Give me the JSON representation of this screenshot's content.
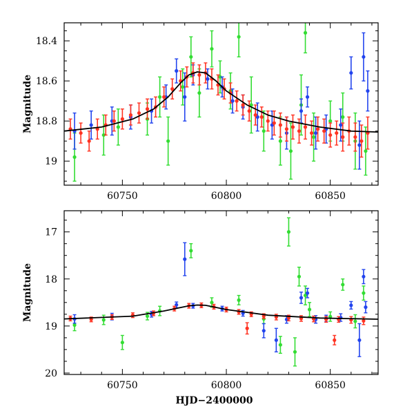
{
  "chart_data": [
    {
      "type": "scatter",
      "panel": "top",
      "xlabel": "",
      "ylabel": "Magnitude",
      "xlim": [
        60722,
        60873
      ],
      "ylim": [
        19.12,
        18.31
      ],
      "y_inverted": true,
      "x_ticks": [
        60750,
        60800,
        60850
      ],
      "x_tick_labels": [
        "60750",
        "60800",
        "60850"
      ],
      "y_ticks": [
        18.4,
        18.6,
        18.8,
        19.0
      ],
      "y_tick_labels": [
        "18.4",
        "18.6",
        "18.8",
        "19"
      ],
      "series_colors": {
        "green": "#33dd33",
        "blue": "#2244ee",
        "red": "#ff3322",
        "model": "#000000"
      },
      "model_curve": {
        "x": [
          60722,
          60740,
          60755,
          60765,
          60772,
          60778,
          60782,
          60786,
          60790,
          60795,
          60800,
          60810,
          60820,
          60830,
          60845,
          60860,
          60873
        ],
        "y": [
          18.85,
          18.83,
          18.79,
          18.74,
          18.68,
          18.61,
          18.57,
          18.555,
          18.56,
          18.6,
          18.65,
          18.72,
          18.77,
          18.8,
          18.83,
          18.85,
          18.855
        ]
      },
      "series": [
        {
          "color": "green",
          "points": [
            [
              60727,
              18.98,
              0.12
            ],
            [
              60741,
              18.87,
              0.1
            ],
            [
              60748,
              18.83,
              0.09
            ],
            [
              60762,
              18.79,
              0.08
            ],
            [
              60768,
              18.68,
              0.1
            ],
            [
              60772,
              18.9,
              0.12
            ],
            [
              60779,
              18.63,
              0.09
            ],
            [
              60783,
              18.48,
              0.1
            ],
            [
              60787,
              18.66,
              0.12
            ],
            [
              60793,
              18.44,
              0.09
            ],
            [
              60797,
              18.58,
              0.08
            ],
            [
              60802,
              18.65,
              0.09
            ],
            [
              60806,
              18.38,
              0.1
            ],
            [
              60812,
              18.72,
              0.14
            ],
            [
              60818,
              18.85,
              0.1
            ],
            [
              60826,
              18.9,
              0.12
            ],
            [
              60831,
              18.95,
              0.14
            ],
            [
              60836,
              18.72,
              0.15
            ],
            [
              60838,
              18.36,
              0.1
            ],
            [
              60842,
              18.88,
              0.12
            ],
            [
              60850,
              18.8,
              0.1
            ],
            [
              60856,
              18.78,
              0.12
            ],
            [
              60862,
              18.9,
              0.14
            ],
            [
              60867,
              18.95,
              0.12
            ]
          ]
        },
        {
          "color": "blue",
          "points": [
            [
              60727,
              18.85,
              0.09
            ],
            [
              60735,
              18.82,
              0.07
            ],
            [
              60745,
              18.8,
              0.07
            ],
            [
              60754,
              18.78,
              0.06
            ],
            [
              60764,
              18.75,
              0.06
            ],
            [
              60771,
              18.68,
              0.06
            ],
            [
              60776,
              18.55,
              0.06
            ],
            [
              60780,
              18.68,
              0.12
            ],
            [
              60784,
              18.57,
              0.05
            ],
            [
              60791,
              18.59,
              0.05
            ],
            [
              60798,
              18.63,
              0.05
            ],
            [
              60803,
              18.7,
              0.06
            ],
            [
              60808,
              18.73,
              0.06
            ],
            [
              60815,
              18.78,
              0.07
            ],
            [
              60822,
              18.82,
              0.07
            ],
            [
              60829,
              18.86,
              0.08
            ],
            [
              60836,
              18.75,
              0.06
            ],
            [
              60839,
              18.68,
              0.05
            ],
            [
              60843,
              18.86,
              0.08
            ],
            [
              60848,
              18.84,
              0.07
            ],
            [
              60855,
              18.82,
              0.08
            ],
            [
              60860,
              18.56,
              0.08
            ],
            [
              60864,
              18.92,
              0.12
            ],
            [
              60866,
              18.48,
              0.12
            ],
            [
              60868,
              18.65,
              0.1
            ]
          ]
        },
        {
          "color": "red",
          "points": [
            [
              60725,
              18.84,
              0.05
            ],
            [
              60730,
              18.86,
              0.05
            ],
            [
              60734,
              18.9,
              0.05
            ],
            [
              60738,
              18.84,
              0.05
            ],
            [
              60742,
              18.82,
              0.05
            ],
            [
              60746,
              18.8,
              0.05
            ],
            [
              60750,
              18.79,
              0.05
            ],
            [
              60754,
              18.77,
              0.05
            ],
            [
              60758,
              18.76,
              0.05
            ],
            [
              60762,
              18.74,
              0.05
            ],
            [
              60766,
              18.73,
              0.05
            ],
            [
              60770,
              18.68,
              0.05
            ],
            [
              60774,
              18.64,
              0.05
            ],
            [
              60778,
              18.6,
              0.05
            ],
            [
              60781,
              18.58,
              0.05
            ],
            [
              60784,
              18.56,
              0.05
            ],
            [
              60787,
              18.57,
              0.05
            ],
            [
              60790,
              18.56,
              0.05
            ],
            [
              60793,
              18.59,
              0.05
            ],
            [
              60796,
              18.62,
              0.05
            ],
            [
              60799,
              18.64,
              0.05
            ],
            [
              60802,
              18.66,
              0.05
            ],
            [
              60805,
              18.7,
              0.05
            ],
            [
              60808,
              18.72,
              0.05
            ],
            [
              60811,
              18.75,
              0.05
            ],
            [
              60814,
              18.77,
              0.05
            ],
            [
              60817,
              18.78,
              0.05
            ],
            [
              60820,
              18.8,
              0.05
            ],
            [
              60823,
              18.81,
              0.06
            ],
            [
              60826,
              18.82,
              0.06
            ],
            [
              60829,
              18.84,
              0.06
            ],
            [
              60832,
              18.83,
              0.06
            ],
            [
              60835,
              18.85,
              0.06
            ],
            [
              60838,
              18.83,
              0.06
            ],
            [
              60841,
              18.86,
              0.06
            ],
            [
              60844,
              18.84,
              0.06
            ],
            [
              60847,
              18.85,
              0.06
            ],
            [
              60850,
              18.87,
              0.06
            ],
            [
              60853,
              18.86,
              0.06
            ],
            [
              60856,
              18.88,
              0.07
            ],
            [
              60859,
              18.85,
              0.07
            ],
            [
              60862,
              18.88,
              0.07
            ],
            [
              60865,
              18.9,
              0.08
            ],
            [
              60868,
              18.86,
              0.08
            ]
          ]
        }
      ]
    },
    {
      "type": "scatter",
      "panel": "bottom",
      "xlabel": "HJD−2400000",
      "ylabel": "Magnitude",
      "xlim": [
        60722,
        60873
      ],
      "ylim": [
        20.03,
        16.55
      ],
      "y_inverted": true,
      "x_ticks": [
        60750,
        60800,
        60850
      ],
      "x_tick_labels": [
        "60750",
        "60800",
        "60850"
      ],
      "y_ticks": [
        17,
        18,
        19,
        20
      ],
      "y_tick_labels": [
        "17",
        "18",
        "19",
        "20"
      ],
      "series_colors": {
        "green": "#33dd33",
        "blue": "#2244ee",
        "red": "#ff3322",
        "model": "#000000"
      },
      "model_curve": {
        "x": [
          60722,
          60755,
          60770,
          60782,
          60786,
          60790,
          60800,
          60820,
          60845,
          60873
        ],
        "y": [
          18.85,
          18.79,
          18.68,
          18.57,
          18.555,
          18.56,
          18.65,
          18.77,
          18.83,
          18.855
        ]
      },
      "series": [
        {
          "color": "green",
          "points": [
            [
              60727,
              18.98,
              0.12
            ],
            [
              60741,
              18.87,
              0.1
            ],
            [
              60750,
              19.35,
              0.15
            ],
            [
              60762,
              18.79,
              0.08
            ],
            [
              60768,
              18.68,
              0.1
            ],
            [
              60783,
              17.4,
              0.15
            ],
            [
              60793,
              18.5,
              0.1
            ],
            [
              60806,
              18.45,
              0.1
            ],
            [
              60818,
              18.85,
              0.1
            ],
            [
              60826,
              19.4,
              0.18
            ],
            [
              60830,
              17.0,
              0.3
            ],
            [
              60833,
              19.55,
              0.3
            ],
            [
              60835,
              17.95,
              0.2
            ],
            [
              60838,
              18.35,
              0.2
            ],
            [
              60840,
              18.65,
              0.15
            ],
            [
              60850,
              18.8,
              0.1
            ],
            [
              60856,
              18.12,
              0.12
            ],
            [
              60862,
              18.9,
              0.14
            ],
            [
              60866,
              18.3,
              0.15
            ]
          ]
        },
        {
          "color": "blue",
          "points": [
            [
              60727,
              18.85,
              0.09
            ],
            [
              60745,
              18.8,
              0.07
            ],
            [
              60764,
              18.75,
              0.06
            ],
            [
              60776,
              18.55,
              0.06
            ],
            [
              60780,
              17.58,
              0.35
            ],
            [
              60784,
              18.57,
              0.05
            ],
            [
              60798,
              18.63,
              0.05
            ],
            [
              60808,
              18.73,
              0.06
            ],
            [
              60818,
              19.1,
              0.15
            ],
            [
              60824,
              19.3,
              0.25
            ],
            [
              60829,
              18.86,
              0.08
            ],
            [
              60836,
              18.4,
              0.12
            ],
            [
              60839,
              18.3,
              0.1
            ],
            [
              60843,
              18.86,
              0.08
            ],
            [
              60848,
              18.84,
              0.07
            ],
            [
              60855,
              18.82,
              0.08
            ],
            [
              60860,
              18.56,
              0.08
            ],
            [
              60864,
              19.3,
              0.35
            ],
            [
              60866,
              17.95,
              0.15
            ],
            [
              60867,
              18.6,
              0.12
            ]
          ]
        },
        {
          "color": "red",
          "points": [
            [
              60725,
              18.84,
              0.05
            ],
            [
              60735,
              18.86,
              0.05
            ],
            [
              60745,
              18.81,
              0.05
            ],
            [
              60755,
              18.77,
              0.05
            ],
            [
              60765,
              18.73,
              0.05
            ],
            [
              60775,
              18.63,
              0.05
            ],
            [
              60782,
              18.57,
              0.05
            ],
            [
              60788,
              18.56,
              0.05
            ],
            [
              60794,
              18.59,
              0.05
            ],
            [
              60800,
              18.65,
              0.05
            ],
            [
              60806,
              18.7,
              0.05
            ],
            [
              60810,
              19.05,
              0.12
            ],
            [
              60812,
              18.75,
              0.05
            ],
            [
              60818,
              18.79,
              0.05
            ],
            [
              60824,
              18.81,
              0.06
            ],
            [
              60830,
              18.83,
              0.06
            ],
            [
              60836,
              18.84,
              0.06
            ],
            [
              60842,
              18.85,
              0.06
            ],
            [
              60848,
              18.86,
              0.06
            ],
            [
              60852,
              19.3,
              0.1
            ],
            [
              60854,
              18.86,
              0.06
            ],
            [
              60860,
              18.87,
              0.07
            ],
            [
              60866,
              18.89,
              0.08
            ]
          ]
        }
      ]
    }
  ]
}
